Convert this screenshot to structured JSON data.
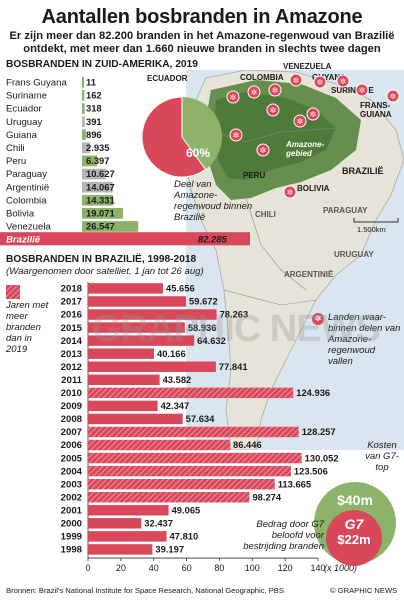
{
  "title": "Aantallen bosbranden in Amazone",
  "subtitle": "Er zijn meer dan 82.200 branden in het Amazone-regenwoud van Brazilië ontdekt, met meer dan 1.660 nieuwe branden in slechts twee dagen",
  "section1_title": "BOSBRANDEN IN ZUID-AMERIKA, 2019",
  "section2_title": "BOSBRANDEN IN BRAZILIË, 1998-2018",
  "section2_note": "(Waargenomen door satelliet, 1 jan tot 26 aug)",
  "pie_percent": "60%",
  "pie_caption": "Deel van Amazone-regenwoud binnen Brazilië",
  "legend_hatched": "Jaren met meer branden dan in 2019",
  "legend_map": "Landen waar-binnen delen van Amazone-regenwoud vallen",
  "map_scale": "1.500km",
  "map_labels": {
    "ecuador": "ECUADOR",
    "colombia": "COLOMBIA",
    "venezuela": "VENEZUELA",
    "guyana": "GUYANA",
    "suriname": "SURINAME",
    "frans_guiana": "FRANS-GUIANA",
    "amazone": "Amazone-gebied",
    "brazilie": "BRAZILIË",
    "peru": "PERU",
    "bolivia": "BOLIVIA",
    "chili": "CHILI",
    "paraguay": "PARAGUAY",
    "uruguay": "URUGUAY",
    "argentinie": "ARGENTINIË"
  },
  "g7_label_cost": "Kosten van G7-top",
  "g7_cost_value": "$40m",
  "g7_logo": "G7",
  "g7_pledge_value": "$22m",
  "g7_label_pledge": "Bedrag door G7 beloofd voor bestrijding branden",
  "x_unit": "(x 1000)",
  "sources": "Bronnen: Brazil's National Institute for Space Research, National Geographic, PBS",
  "credit": "© GRAPHIC NEWS",
  "watermark": "GRAPHIC NEWS",
  "colors": {
    "red": "#d9475a",
    "green": "#8db36b",
    "dark_green": "#4e7a3a",
    "hatch_red": "#e47887"
  },
  "chart_data": [
    {
      "type": "bar",
      "title": "BOSBRANDEN IN ZUID-AMERIKA, 2019",
      "categories": [
        "Frans Guyana",
        "Suriname",
        "Ecuador",
        "Uruguay",
        "Guiana",
        "Chili",
        "Peru",
        "Paraguay",
        "Argentinië",
        "Colombia",
        "Bolivia",
        "Venezuela",
        "Brazilië"
      ],
      "values": [
        11,
        162,
        318,
        391,
        896,
        2935,
        6397,
        10627,
        14067,
        14331,
        19071,
        26547,
        82285
      ],
      "labels": [
        "11",
        "162",
        "318",
        "391",
        "896",
        "2.935",
        "6.397",
        "10.627",
        "14.067",
        "14.331",
        "19.071",
        "26.547",
        "82.285"
      ],
      "amazon_country": [
        true,
        true,
        true,
        false,
        true,
        false,
        true,
        false,
        false,
        true,
        true,
        true,
        true
      ]
    },
    {
      "type": "bar",
      "title": "BOSBRANDEN IN BRAZILIË, 1998-2018",
      "categories": [
        "2018",
        "2017",
        "2016",
        "2015",
        "2014",
        "2013",
        "2012",
        "2011",
        "2010",
        "2009",
        "2008",
        "2007",
        "2006",
        "2005",
        "2004",
        "2003",
        "2002",
        "2001",
        "2000",
        "1999",
        "1998"
      ],
      "values": [
        45.656,
        59.672,
        78.263,
        58.936,
        64.632,
        40.166,
        77.841,
        43.582,
        124.936,
        42.347,
        57.634,
        128.257,
        86.446,
        130.052,
        123.506,
        113.665,
        98.274,
        49.065,
        32.437,
        47.81,
        39.197
      ],
      "labels": [
        "45.656",
        "59.672",
        "78.263",
        "58.936",
        "64.632",
        "40.166",
        "77.841",
        "43.582",
        "124.936",
        "42.347",
        "57.634",
        "128.257",
        "86.446",
        "130.052",
        "123.506",
        "113.665",
        "98.274",
        "49.065",
        "32.437",
        "47.810",
        "39.197"
      ],
      "hatched": [
        false,
        false,
        false,
        false,
        false,
        false,
        false,
        false,
        true,
        false,
        false,
        true,
        true,
        true,
        true,
        true,
        true,
        false,
        false,
        false,
        false
      ],
      "xlim": [
        0,
        140
      ],
      "xticks": [
        "0",
        "20",
        "40",
        "60",
        "80",
        "100",
        "120",
        "140"
      ],
      "xunit": "(x 1000)"
    },
    {
      "type": "pie",
      "values": [
        60,
        40
      ],
      "labels": [
        "60%",
        ""
      ]
    }
  ]
}
